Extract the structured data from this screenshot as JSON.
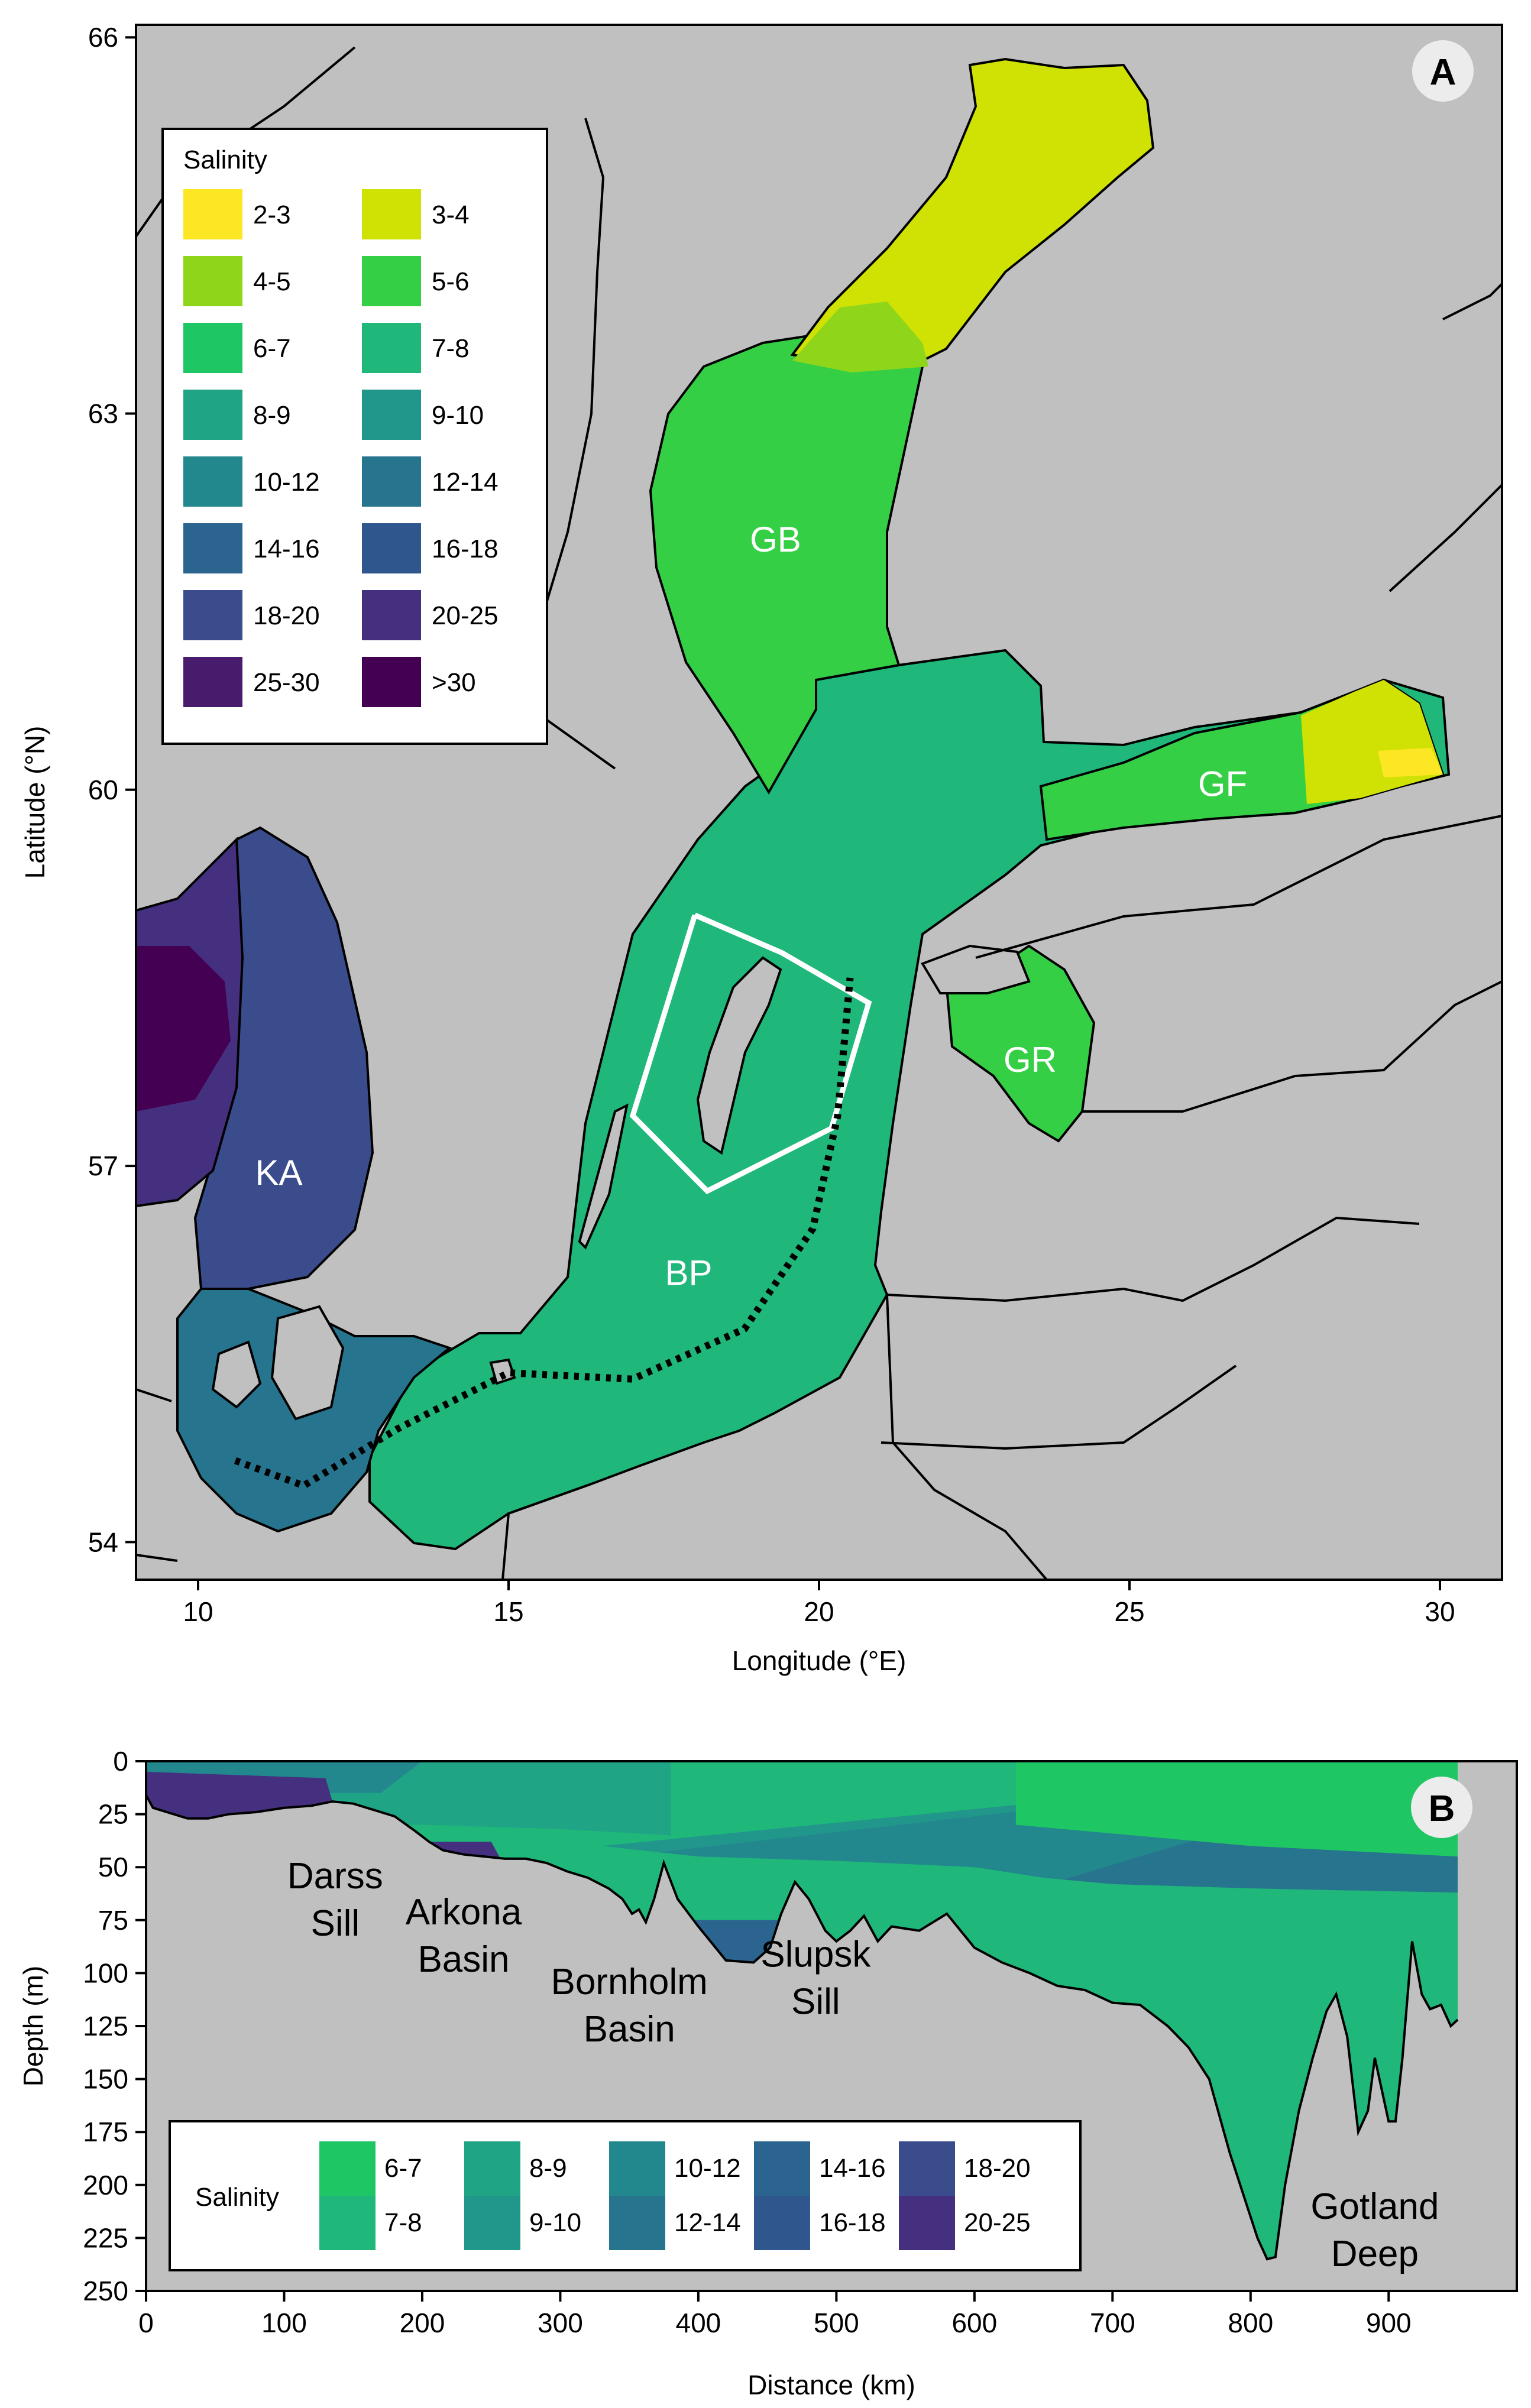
{
  "chart_data": [
    {
      "type": "map",
      "panel_label": "A",
      "xlabel": "Longitude (°E)",
      "ylabel": "Latitude (°N)",
      "xlim": [
        9,
        31
      ],
      "ylim": [
        53.7,
        66.1
      ],
      "xticks": [
        10,
        15,
        20,
        25,
        30
      ],
      "yticks": [
        54,
        57,
        60,
        63,
        66
      ],
      "background_color": "#c0c0c0",
      "legend": {
        "title": "Salinity",
        "placement": "top-left",
        "entries": [
          {
            "label": "2-3",
            "color": "#fde725"
          },
          {
            "label": "3-4",
            "color": "#cfe204"
          },
          {
            "label": "4-5",
            "color": "#8fd61a"
          },
          {
            "label": "5-6",
            "color": "#34cf45"
          },
          {
            "label": "6-7",
            "color": "#1fc764"
          },
          {
            "label": "7-8",
            "color": "#1fb77a"
          },
          {
            "label": "8-9",
            "color": "#20a486"
          },
          {
            "label": "9-10",
            "color": "#21968b"
          },
          {
            "label": "10-12",
            "color": "#22888d"
          },
          {
            "label": "12-14",
            "color": "#27748e"
          },
          {
            "label": "14-16",
            "color": "#2b658f"
          },
          {
            "label": "16-18",
            "color": "#30568e"
          },
          {
            "label": "18-20",
            "color": "#3b4c8c"
          },
          {
            "label": "20-25",
            "color": "#45307f"
          },
          {
            "label": "25-30",
            "color": "#481b6d"
          },
          {
            "label": ">30",
            "color": "#440154"
          }
        ]
      },
      "region_labels": [
        {
          "label": "GB",
          "lon": 19.3,
          "lat": 61.9
        },
        {
          "label": "GF",
          "lon": 26.5,
          "lat": 59.95
        },
        {
          "label": "GR",
          "lon": 23.4,
          "lat": 57.75
        },
        {
          "label": "KA",
          "lon": 11.3,
          "lat": 56.85
        },
        {
          "label": "BP",
          "lon": 17.9,
          "lat": 56.05
        }
      ],
      "study_area_polygon": [
        [
          18.0,
          59.0
        ],
        [
          19.4,
          58.7
        ],
        [
          20.8,
          58.3
        ],
        [
          20.2,
          57.3
        ],
        [
          18.2,
          56.8
        ],
        [
          17.0,
          57.4
        ],
        [
          18.0,
          59.0
        ]
      ],
      "transect_line": [
        [
          10.6,
          54.65
        ],
        [
          11.7,
          54.45
        ],
        [
          13.2,
          54.9
        ],
        [
          15.0,
          55.35
        ],
        [
          17.0,
          55.3
        ],
        [
          18.8,
          55.7
        ],
        [
          19.9,
          56.5
        ],
        [
          20.3,
          57.4
        ],
        [
          20.5,
          58.5
        ]
      ]
    },
    {
      "type": "area",
      "panel_label": "B",
      "xlabel": "Distance (km)",
      "ylabel": "Depth (m)",
      "xlim": [
        0,
        950
      ],
      "ylim": [
        250,
        0
      ],
      "xticks": [
        0,
        100,
        200,
        300,
        400,
        500,
        600,
        700,
        800,
        900
      ],
      "yticks": [
        0,
        25,
        50,
        75,
        100,
        125,
        150,
        175,
        200,
        225,
        250
      ],
      "annotations": [
        {
          "lines": [
            "Darss",
            "Sill"
          ],
          "x": 137,
          "y": 60
        },
        {
          "lines": [
            "Arkona",
            "Basin"
          ],
          "x": 230,
          "y": 77
        },
        {
          "lines": [
            "Bornholm",
            "Basin"
          ],
          "x": 350,
          "y": 110
        },
        {
          "lines": [
            "Slupsk",
            "Sill"
          ],
          "x": 485,
          "y": 97
        },
        {
          "lines": [
            "Gotland",
            "Deep"
          ],
          "x": 890,
          "y": 216
        }
      ],
      "bottom_profile": {
        "distance_km": [
          0,
          5,
          15,
          30,
          45,
          60,
          80,
          100,
          120,
          135,
          150,
          165,
          180,
          195,
          205,
          215,
          230,
          245,
          260,
          275,
          290,
          305,
          320,
          335,
          345,
          352,
          357,
          362,
          368,
          375,
          385,
          400,
          420,
          440,
          452,
          460,
          470,
          480,
          492,
          500,
          510,
          520,
          530,
          540,
          560,
          580,
          600,
          620,
          640,
          660,
          680,
          700,
          720,
          740,
          755,
          770,
          785,
          795,
          805,
          812,
          818,
          825,
          835,
          845,
          855,
          862,
          870,
          878,
          885,
          890,
          895,
          900,
          905,
          910,
          917,
          924,
          930,
          938,
          945,
          950
        ],
        "depth_m": [
          16,
          22,
          24,
          27,
          27,
          25,
          24,
          22,
          21,
          19,
          20,
          23,
          26,
          33,
          38,
          42,
          44,
          45,
          46,
          46,
          48,
          52,
          55,
          60,
          65,
          72,
          70,
          76,
          65,
          48,
          65,
          78,
          94,
          95,
          88,
          72,
          57,
          65,
          80,
          85,
          80,
          73,
          85,
          78,
          80,
          72,
          88,
          95,
          100,
          106,
          108,
          114,
          115,
          125,
          135,
          150,
          185,
          205,
          225,
          235,
          234,
          200,
          165,
          140,
          118,
          110,
          130,
          175,
          165,
          140,
          155,
          170,
          170,
          140,
          85,
          110,
          117,
          115,
          125,
          122
        ]
      },
      "legend": {
        "title": "Salinity",
        "placement": "bottom-left",
        "entries": [
          {
            "label": "6-7",
            "color": "#1fc764"
          },
          {
            "label": "7-8",
            "color": "#1fb77a"
          },
          {
            "label": "8-9",
            "color": "#20a486"
          },
          {
            "label": "9-10",
            "color": "#21968b"
          },
          {
            "label": "10-12",
            "color": "#22888d"
          },
          {
            "label": "12-14",
            "color": "#27748e"
          },
          {
            "label": "14-16",
            "color": "#2b658f"
          },
          {
            "label": "16-18",
            "color": "#30568e"
          },
          {
            "label": "18-20",
            "color": "#3b4c8c"
          },
          {
            "label": "20-25",
            "color": "#45307f"
          }
        ]
      }
    }
  ]
}
